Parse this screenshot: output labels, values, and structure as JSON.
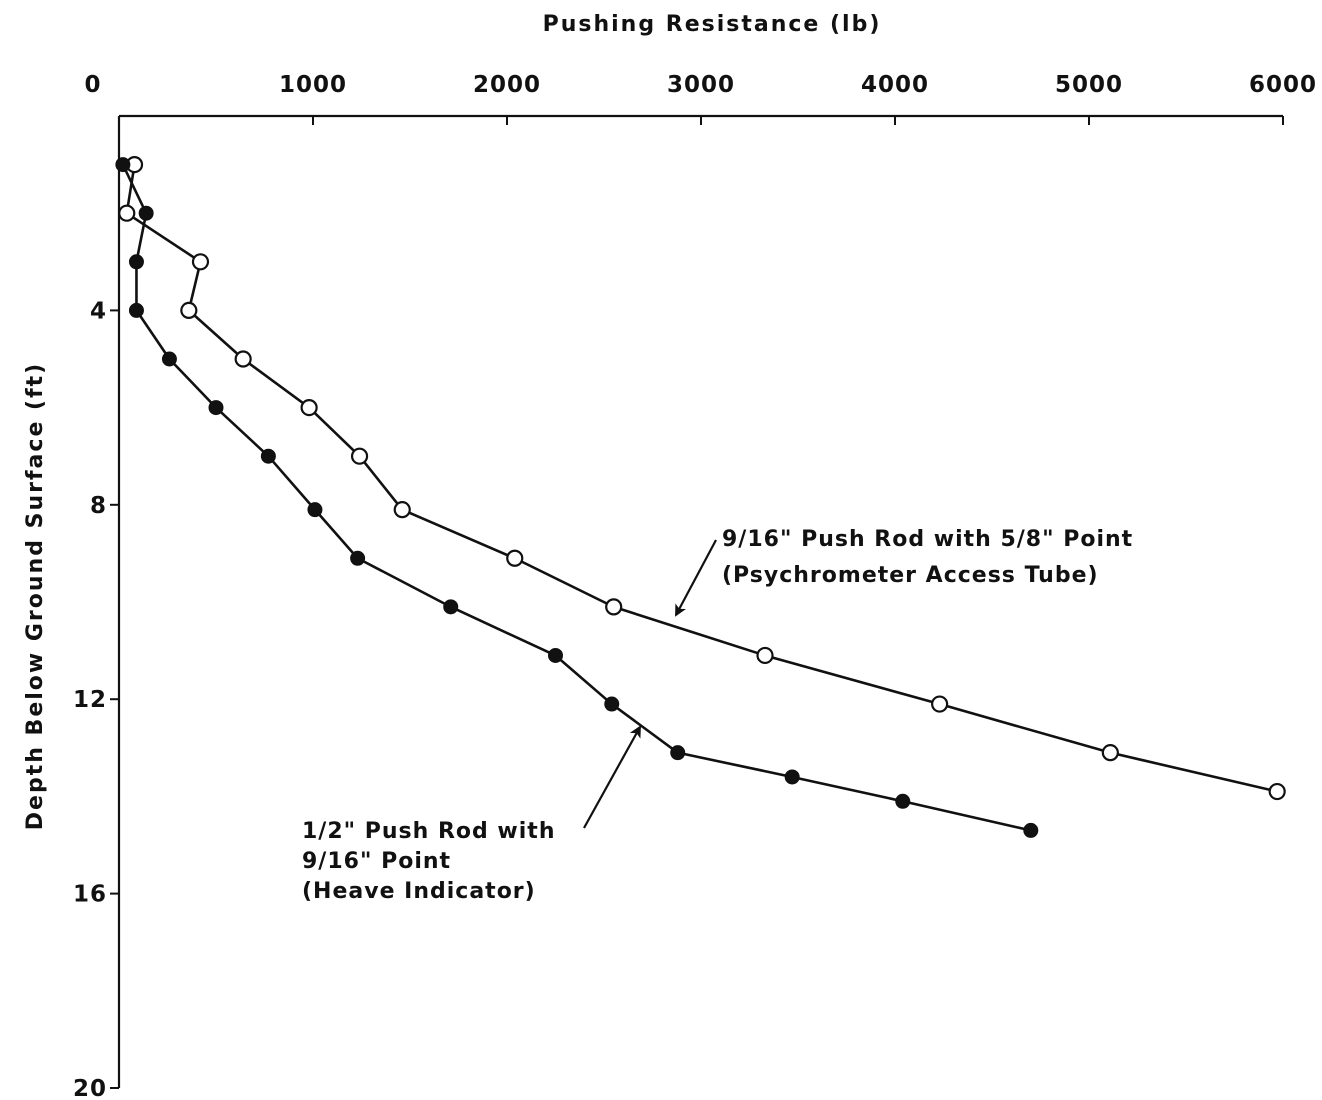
{
  "chart_data": {
    "type": "line",
    "title": "",
    "xlabel": "Pushing Resistance (lb)",
    "ylabel": "Depth Below Ground Surface (ft)",
    "x_axis_position": "top",
    "y_axis_inverted": true,
    "xlim": [
      0,
      6000
    ],
    "ylim": [
      0,
      20
    ],
    "x_ticks": [
      0,
      1000,
      2000,
      3000,
      4000,
      5000,
      6000
    ],
    "x_tick_labels": [
      "0",
      "1000",
      "2000",
      "3000",
      "4000",
      "5000",
      "6000"
    ],
    "y_ticks": [
      4,
      8,
      12,
      16,
      20
    ],
    "y_tick_labels": [
      "4",
      "8",
      "12",
      "16",
      "20"
    ],
    "grid": false,
    "legend": "none",
    "series": [
      {
        "marker": "open-circle",
        "color": "#111111",
        "points": [
          [
            80,
            1
          ],
          [
            40,
            2
          ],
          [
            420,
            3
          ],
          [
            360,
            4
          ],
          [
            640,
            5
          ],
          [
            980,
            6
          ],
          [
            1240,
            7
          ],
          [
            1460,
            8.1
          ],
          [
            2040,
            9.1
          ],
          [
            2550,
            10.1
          ],
          [
            3330,
            11.1
          ],
          [
            4230,
            12.1
          ],
          [
            5110,
            13.1
          ],
          [
            5970,
            13.9
          ]
        ]
      },
      {
        "marker": "filled-circle",
        "color": "#111111",
        "points": [
          [
            20,
            1
          ],
          [
            140,
            2
          ],
          [
            90,
            3
          ],
          [
            90,
            4
          ],
          [
            260,
            5
          ],
          [
            500,
            6
          ],
          [
            770,
            7
          ],
          [
            1010,
            8.1
          ],
          [
            1230,
            9.1
          ],
          [
            1710,
            10.1
          ],
          [
            2250,
            11.1
          ],
          [
            2540,
            12.1
          ],
          [
            2880,
            13.1
          ],
          [
            3470,
            13.6
          ],
          [
            4040,
            14.1
          ],
          [
            4700,
            14.7
          ]
        ]
      }
    ],
    "annotations": [
      {
        "lines": [
          "9/16\" Push Rod with 5/8\" Point",
          "(Psychrometer Access Tube)"
        ]
      },
      {
        "lines": [
          "1/2\" Push Rod with",
          "9/16\" Point",
          "(Heave Indicator)"
        ]
      }
    ]
  }
}
